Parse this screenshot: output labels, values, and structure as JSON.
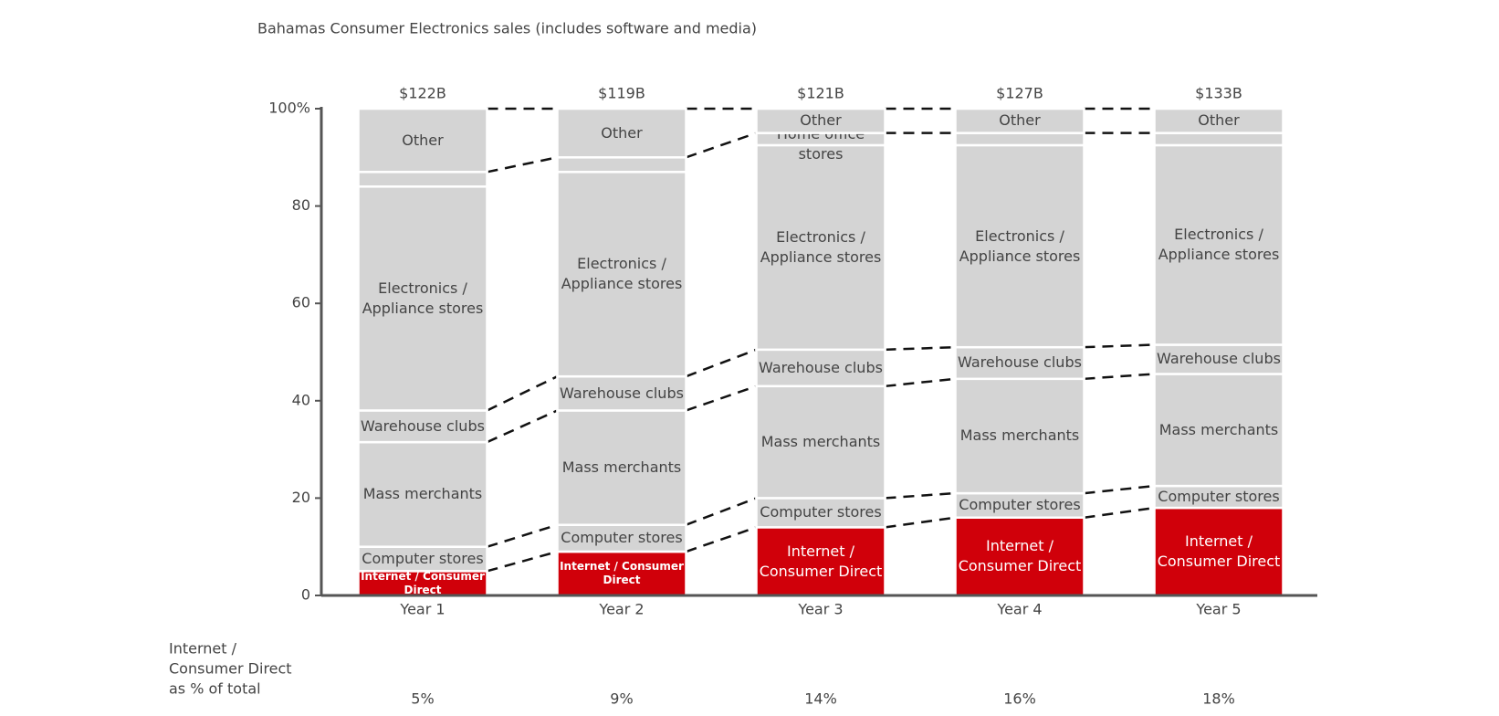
{
  "chart_data": {
    "type": "stacked_bar",
    "title": "Bahamas Consumer Electronics sales (includes software and media)",
    "categories": [
      "Year 1",
      "Year 2",
      "Year 3",
      "Year 4",
      "Year 5"
    ],
    "series": [
      {
        "name": "Internet / Consumer Direct",
        "color": "#d0000a",
        "values": [
          5,
          9,
          14,
          16,
          18
        ],
        "value_labels": [
          "5%",
          "9%",
          "14%",
          "16%",
          "18%"
        ]
      },
      {
        "name": "Computer stores",
        "color": "#d4d4d4",
        "values": [
          5,
          5.5,
          6,
          5,
          4.5
        ]
      },
      {
        "name": "Mass merchants",
        "color": "#d4d4d4",
        "values": [
          21.5,
          23.5,
          23,
          23.5,
          23
        ]
      },
      {
        "name": "Warehouse clubs",
        "color": "#d4d4d4",
        "values": [
          6.5,
          7,
          7.5,
          6.5,
          6
        ]
      },
      {
        "name": "Electronics / Appliance stores",
        "color": "#d4d4d4",
        "values": [
          46,
          42,
          42,
          41.5,
          41
        ]
      },
      {
        "name": "Home office stores",
        "color": "#d4d4d4",
        "values": [
          3,
          3,
          2.5,
          2.5,
          2.5
        ]
      },
      {
        "name": "Other",
        "color": "#d4d4d4",
        "values": [
          13,
          10,
          5,
          5,
          5
        ]
      }
    ],
    "totals": {
      "values": [
        122,
        119,
        121,
        127,
        133
      ],
      "value_labels": [
        "$122B",
        "$119B",
        "$121B",
        "$127B",
        "$133B"
      ]
    },
    "share_row_label": [
      "Internet /",
      "Consumer Direct",
      "as % of total"
    ],
    "ylim": [
      0,
      100
    ],
    "yticks": [
      0,
      20,
      40,
      60,
      80,
      {
        "value": 100,
        "label": "100%"
      }
    ]
  }
}
